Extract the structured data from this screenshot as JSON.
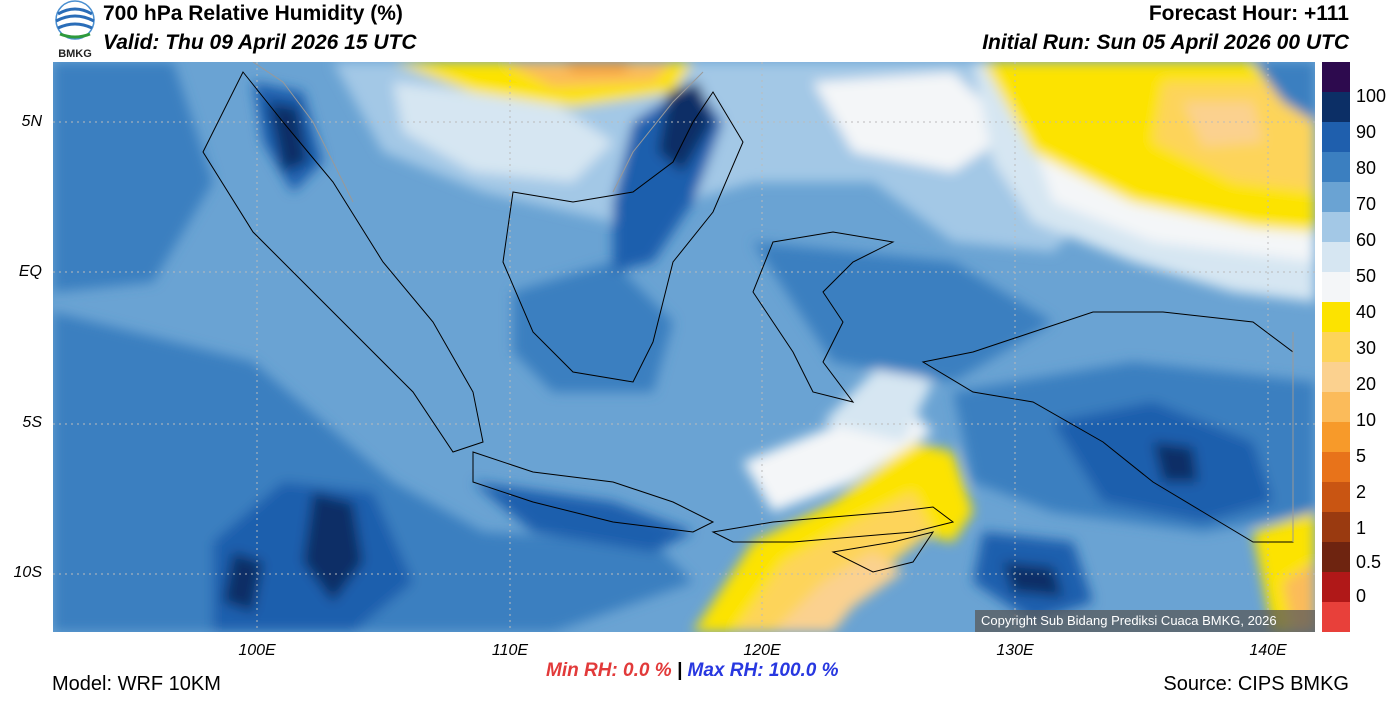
{
  "header": {
    "title": "700 hPa Relative Humidity (%)",
    "valid": "Valid: Thu 09 April 2026 15 UTC",
    "forecast_hour": "Forecast Hour: +111",
    "initial_run": "Initial Run: Sun 05 April 2026 00 UTC",
    "logo_text": "BMKG"
  },
  "map": {
    "lat_labels": [
      "5N",
      "EQ",
      "5S",
      "10S"
    ],
    "lon_labels": [
      "100E",
      "110E",
      "120E",
      "130E",
      "140E"
    ],
    "copyright": "Copyright Sub Bidang Prediksi Cuaca BMKG, 2026"
  },
  "colorbar": {
    "labels": [
      "100",
      "90",
      "80",
      "70",
      "60",
      "50",
      "40",
      "30",
      "20",
      "10",
      "5",
      "2",
      "1",
      "0.5",
      "0"
    ],
    "colors": [
      "#2d0a4e",
      "#0c2f66",
      "#1f5fad",
      "#3b7fc0",
      "#6aa3d3",
      "#a3c8e6",
      "#d6e6f2",
      "#f4f6f8",
      "#fce300",
      "#fdd45a",
      "#fbd18f",
      "#fbbb5a",
      "#f79a2a",
      "#e8731a",
      "#c95512",
      "#9a3a10",
      "#6e2410",
      "#b01818",
      "#e8403a"
    ]
  },
  "footer": {
    "model": "Model: WRF 10KM",
    "min_label": "Min RH:",
    "min_value": "0.0 %",
    "separator": "|",
    "max_label": "Max RH:",
    "max_value": "100.0 %",
    "source": "Source: CIPS BMKG"
  }
}
